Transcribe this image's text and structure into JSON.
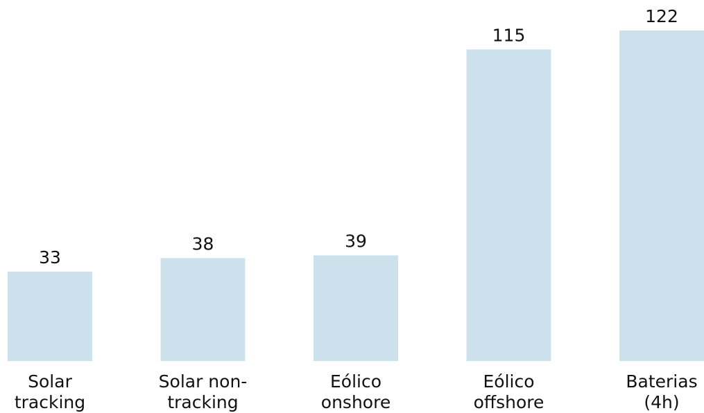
{
  "chart_data": {
    "type": "bar",
    "categories": [
      "Solar tracking",
      "Solar non-tracking",
      "Eólico onshore",
      "Eólico offshore",
      "Baterias (4h)"
    ],
    "values": [
      33,
      38,
      39,
      115,
      122
    ],
    "color": "#cce1ec"
  }
}
